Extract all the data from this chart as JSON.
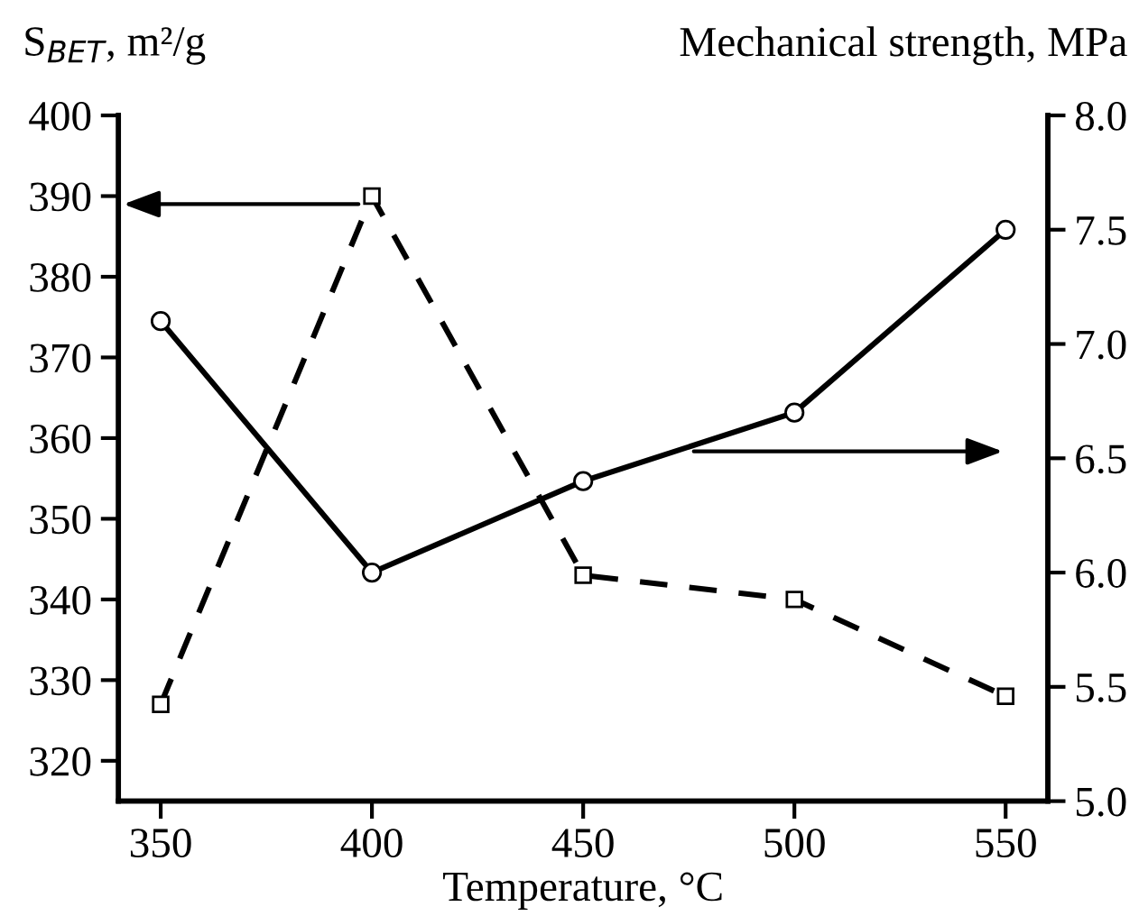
{
  "chart_data": {
    "type": "line",
    "xlabel": "Temperature, °C",
    "ylabel": "S$_{BET}$, m²/g",
    "y2label": "Mechanical strength, MPa",
    "x": [
      350,
      400,
      450,
      500,
      550
    ],
    "series": [
      {
        "color": "#000000",
        "values": [
          327,
          390,
          343,
          340,
          328
        ],
        "marker": "square",
        "line_style": "dashed"
      },
      {
        "color": "#000000",
        "values": [
          7.1,
          6.0,
          6.4,
          6.7,
          7.5
        ],
        "marker": "circle",
        "line_style": "solid",
        "axis": "y2"
      }
    ],
    "xlim": [
      340,
      560
    ],
    "xticks": [
      350,
      400,
      450,
      500,
      550
    ],
    "ylim": [
      315,
      400
    ],
    "yticks": [
      320,
      330,
      340,
      350,
      360,
      370,
      380,
      390,
      400
    ],
    "y2lim": [
      5.0,
      8.0
    ],
    "y2ticks": [
      {
        "value": 5.0,
        "label": "5.0"
      },
      {
        "value": 5.5,
        "label": "5.5"
      },
      {
        "value": 6.0,
        "label": "6.0"
      },
      {
        "value": 6.5,
        "label": "6.5"
      },
      {
        "value": 7.0,
        "label": "7.0"
      },
      {
        "value": 7.5,
        "label": "7.5"
      },
      {
        "value": 8.0,
        "label": "8.0"
      }
    ],
    "grid": false,
    "legend": false
  }
}
